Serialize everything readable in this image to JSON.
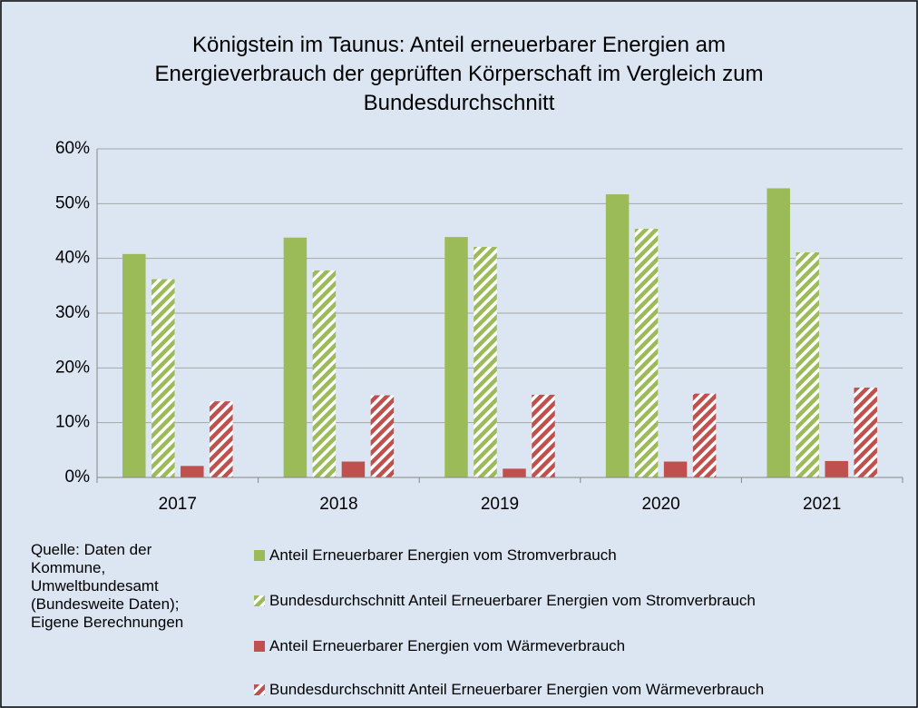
{
  "chart_data": {
    "type": "bar",
    "title": "Königstein im Taunus: Anteil erneuerbarer Energien am Energieverbrauch der geprüften Körperschaft im Vergleich zum Bundesdurchschnitt",
    "categories": [
      "2017",
      "2018",
      "2019",
      "2020",
      "2021"
    ],
    "series": [
      {
        "name": "Anteil Erneuerbarer Energien vom Stromverbrauch",
        "color": "#9bbb59",
        "hatched": false,
        "values": [
          40.8,
          43.8,
          43.9,
          51.7,
          52.8
        ]
      },
      {
        "name": "Bundesdurchschnitt Anteil Erneuerbarer Energien vom Stromverbrauch",
        "color": "#9bbb59",
        "hatched": true,
        "values": [
          36.2,
          37.8,
          42.1,
          45.4,
          41.1
        ]
      },
      {
        "name": "Anteil Erneuerbarer Energien vom Wärmeverbrauch",
        "color": "#c0504d",
        "hatched": false,
        "values": [
          2.1,
          2.9,
          1.6,
          2.9,
          3.0
        ]
      },
      {
        "name": "Bundesdurchschnitt Anteil Erneuerbarer Energien vom Wärmeverbrauch",
        "color": "#c0504d",
        "hatched": true,
        "values": [
          13.9,
          15.0,
          15.1,
          15.3,
          16.4
        ]
      }
    ],
    "ylim": [
      0,
      60
    ],
    "yticks": [
      {
        "value": 0,
        "label": "0%"
      },
      {
        "value": 10,
        "label": "10%"
      },
      {
        "value": 20,
        "label": "20%"
      },
      {
        "value": 30,
        "label": "30%"
      },
      {
        "value": 40,
        "label": "40%"
      },
      {
        "value": 50,
        "label": "50%"
      },
      {
        "value": 60,
        "label": "60%"
      }
    ],
    "grid": true,
    "note": "Quelle: Daten der Kommune, Umweltbundesamt (Bundesweite Daten); Eigene Berechnungen"
  }
}
